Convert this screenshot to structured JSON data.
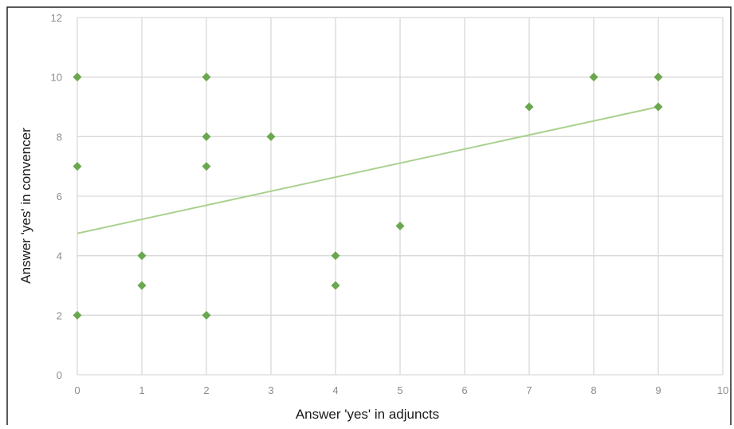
{
  "chart_data": {
    "type": "scatter",
    "title": "",
    "xlabel": "Answer 'yes' in adjuncts",
    "ylabel": "Answer 'yes' in convencer",
    "xlim": [
      0,
      10
    ],
    "ylim": [
      0,
      12
    ],
    "x_ticks": [
      0,
      1,
      2,
      3,
      4,
      5,
      6,
      7,
      8,
      9,
      10
    ],
    "y_ticks": [
      0,
      2,
      4,
      6,
      8,
      10,
      12
    ],
    "grid": true,
    "legend": "none",
    "marker": "diamond",
    "colors": {
      "points": "#6aa84f",
      "trendline": "#a9d18e",
      "grid": "#d9d9d9",
      "frame": "#222222"
    },
    "points": [
      {
        "x": 0,
        "y": 10
      },
      {
        "x": 0,
        "y": 7
      },
      {
        "x": 0,
        "y": 2
      },
      {
        "x": 1,
        "y": 4
      },
      {
        "x": 1,
        "y": 3
      },
      {
        "x": 2,
        "y": 10
      },
      {
        "x": 2,
        "y": 8
      },
      {
        "x": 2,
        "y": 7
      },
      {
        "x": 2,
        "y": 2
      },
      {
        "x": 3,
        "y": 8
      },
      {
        "x": 4,
        "y": 4
      },
      {
        "x": 4,
        "y": 3
      },
      {
        "x": 5,
        "y": 5
      },
      {
        "x": 7,
        "y": 9
      },
      {
        "x": 8,
        "y": 10
      },
      {
        "x": 9,
        "y": 10
      },
      {
        "x": 9,
        "y": 9
      }
    ],
    "trendline": {
      "type": "linear",
      "x_start": 0,
      "y_start": 4.75,
      "x_end": 9,
      "y_end": 9.0
    }
  }
}
